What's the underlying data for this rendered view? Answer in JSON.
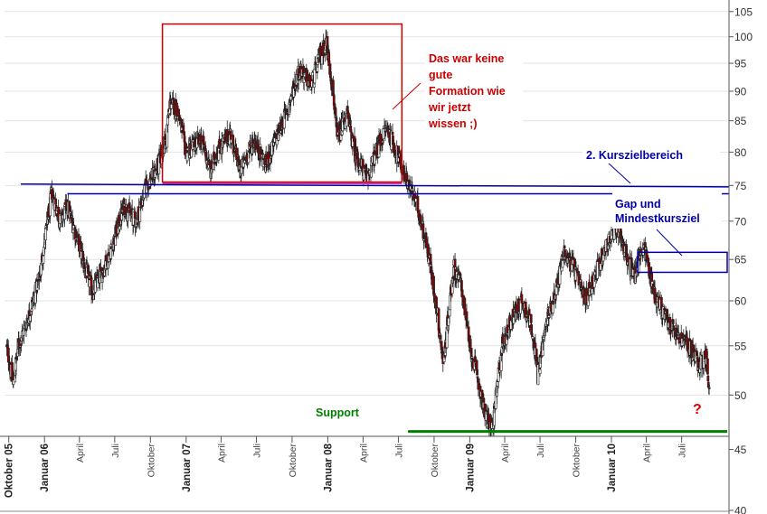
{
  "chart_data": {
    "type": "candlestick",
    "title": "",
    "xlabel": "",
    "ylabel": "",
    "y_scale": "log",
    "ylim": [
      40,
      107
    ],
    "y_ticks": [
      40,
      45,
      50,
      55,
      60,
      65,
      70,
      75,
      80,
      85,
      90,
      95,
      100,
      105
    ],
    "x_range": [
      "2005-09-20",
      "2010-10-31"
    ],
    "x_ticks": [
      {
        "label": "Oktober 05",
        "date": "2005-10-01",
        "bold": true
      },
      {
        "label": "Januar 06",
        "date": "2006-01-01",
        "bold": true
      },
      {
        "label": "April",
        "date": "2006-04-01",
        "bold": false
      },
      {
        "label": "Juli",
        "date": "2006-07-01",
        "bold": false
      },
      {
        "label": "Oktober",
        "date": "2006-10-01",
        "bold": false
      },
      {
        "label": "Januar 07",
        "date": "2007-01-01",
        "bold": true
      },
      {
        "label": "April",
        "date": "2007-04-01",
        "bold": false
      },
      {
        "label": "Juli",
        "date": "2007-07-01",
        "bold": false
      },
      {
        "label": "Oktober",
        "date": "2007-10-01",
        "bold": false
      },
      {
        "label": "Januar 08",
        "date": "2008-01-01",
        "bold": true
      },
      {
        "label": "April",
        "date": "2008-04-01",
        "bold": false
      },
      {
        "label": "Juli",
        "date": "2008-07-01",
        "bold": false
      },
      {
        "label": "Oktober",
        "date": "2008-10-01",
        "bold": false
      },
      {
        "label": "Januar 09",
        "date": "2009-01-01",
        "bold": true
      },
      {
        "label": "April",
        "date": "2009-04-01",
        "bold": false
      },
      {
        "label": "Juli",
        "date": "2009-07-01",
        "bold": false
      },
      {
        "label": "Oktober",
        "date": "2009-10-01",
        "bold": false
      },
      {
        "label": "Januar 10",
        "date": "2010-01-01",
        "bold": true
      },
      {
        "label": "April",
        "date": "2010-04-01",
        "bold": false
      },
      {
        "label": "Juli",
        "date": "2010-07-01",
        "bold": false
      }
    ],
    "price_path": [
      [
        "2005-09-25",
        55
      ],
      [
        "2005-10-12",
        51
      ],
      [
        "2005-10-25",
        55
      ],
      [
        "2005-11-20",
        58
      ],
      [
        "2005-12-20",
        63
      ],
      [
        "2006-01-20",
        74
      ],
      [
        "2006-02-10",
        70
      ],
      [
        "2006-03-01",
        72
      ],
      [
        "2006-03-25",
        68
      ],
      [
        "2006-04-15",
        64
      ],
      [
        "2006-05-05",
        61
      ],
      [
        "2006-05-25",
        63
      ],
      [
        "2006-06-20",
        66
      ],
      [
        "2006-07-25",
        72
      ],
      [
        "2006-08-25",
        70
      ],
      [
        "2006-09-20",
        75
      ],
      [
        "2006-10-15",
        77
      ],
      [
        "2006-11-10",
        82
      ],
      [
        "2006-11-20",
        88
      ],
      [
        "2006-12-10",
        87
      ],
      [
        "2006-12-31",
        80
      ],
      [
        "2007-02-10",
        82
      ],
      [
        "2007-03-05",
        77
      ],
      [
        "2007-03-20",
        80
      ],
      [
        "2007-04-25",
        83
      ],
      [
        "2007-05-20",
        77
      ],
      [
        "2007-06-25",
        82
      ],
      [
        "2007-07-25",
        78
      ],
      [
        "2007-08-20",
        82
      ],
      [
        "2007-09-20",
        87
      ],
      [
        "2007-10-20",
        94
      ],
      [
        "2007-11-20",
        91
      ],
      [
        "2007-12-10",
        96
      ],
      [
        "2007-12-28",
        99
      ],
      [
        "2008-01-15",
        90
      ],
      [
        "2008-01-25",
        82
      ],
      [
        "2008-02-20",
        86
      ],
      [
        "2008-03-10",
        80
      ],
      [
        "2008-04-10",
        76
      ],
      [
        "2008-05-05",
        80
      ],
      [
        "2008-06-01",
        84
      ],
      [
        "2008-06-25",
        80
      ],
      [
        "2008-07-20",
        76
      ],
      [
        "2008-08-20",
        72
      ],
      [
        "2008-09-15",
        66
      ],
      [
        "2008-10-05",
        60
      ],
      [
        "2008-10-25",
        53
      ],
      [
        "2008-11-20",
        64
      ],
      [
        "2008-12-10",
        62
      ],
      [
        "2008-12-31",
        55
      ],
      [
        "2009-01-25",
        51
      ],
      [
        "2009-02-10",
        48
      ],
      [
        "2009-03-01",
        47
      ],
      [
        "2009-03-25",
        55
      ],
      [
        "2009-04-20",
        58
      ],
      [
        "2009-05-15",
        60
      ],
      [
        "2009-06-10",
        57
      ],
      [
        "2009-06-25",
        52
      ],
      [
        "2009-07-20",
        58
      ],
      [
        "2009-08-15",
        62
      ],
      [
        "2009-09-01",
        66
      ],
      [
        "2009-09-25",
        64
      ],
      [
        "2009-10-25",
        60
      ],
      [
        "2009-11-20",
        63
      ],
      [
        "2009-12-20",
        67
      ],
      [
        "2010-01-20",
        69
      ],
      [
        "2010-02-10",
        65
      ],
      [
        "2010-03-01",
        63
      ],
      [
        "2010-03-25",
        67
      ],
      [
        "2010-04-20",
        61
      ],
      [
        "2010-05-20",
        58
      ],
      [
        "2010-06-20",
        56
      ],
      [
        "2010-07-20",
        55
      ],
      [
        "2010-08-15",
        53
      ],
      [
        "2010-09-01",
        54
      ],
      [
        "2010-09-10",
        50.5
      ]
    ],
    "annotations": {
      "formation_box": {
        "label": "Das war keine gute Formation wie wir jetzt wissen ;)",
        "x0": "2006-11-01",
        "x1": "2008-07-10",
        "y0": 75.5,
        "y1": 102.5,
        "color": "#cc0000"
      },
      "upper_line": {
        "label": "2. Kurszielbereich",
        "x0": "2005-11-01",
        "y0": 75.2,
        "x1": "2010-10-31",
        "y1": 74.8,
        "color": "#0000aa"
      },
      "lower_line": {
        "x0": "2006-03-01",
        "x1": "2010-10-31",
        "y": 73.8,
        "color": "#0000aa"
      },
      "pink_line": {
        "x0": "2006-11-01",
        "x1": "2008-07-10",
        "y": 75.3,
        "color": "#cc3399"
      },
      "gap_box": {
        "label": "Gap und Mindestkursziel",
        "x0": "2010-03-10",
        "x1": "2010-10-31",
        "y0": 63.4,
        "y1": 65.9,
        "color": "#0000aa"
      },
      "support_line": {
        "label": "Support",
        "x0": "2008-09-15",
        "x1": "2010-10-31",
        "y": 46.6,
        "color": "#008000"
      },
      "question": {
        "label": "?",
        "color": "#dd0000"
      }
    }
  },
  "annotation_labels": {
    "formation_lines": [
      "Das war keine",
      "gute",
      "Formation wie",
      "wir jetzt",
      "wissen ;)"
    ],
    "target_zone": "2. Kurszielbereich",
    "gap_lines": [
      "Gap und",
      "Mindestkursziel"
    ],
    "support": "Support",
    "question": "?"
  },
  "colors": {
    "formation": "#cc0000",
    "blue": "#0000aa",
    "pink": "#cc3399",
    "support": "#008000",
    "candle": "#222222",
    "candle_up": "#ffffff",
    "candle_down": "#8b0000",
    "grid": "#e3e3e3"
  }
}
